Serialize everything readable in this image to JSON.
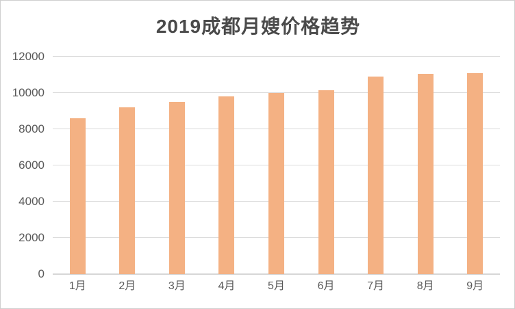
{
  "chart_data": {
    "type": "bar",
    "title": "2019成都月嫂价格趋势",
    "categories": [
      "1月",
      "2月",
      "3月",
      "4月",
      "5月",
      "6月",
      "7月",
      "8月",
      "9月"
    ],
    "values": [
      8600,
      9200,
      9500,
      9800,
      10000,
      10150,
      10900,
      11050,
      11100
    ],
    "xlabel": "",
    "ylabel": "",
    "ylim": [
      0,
      12000
    ],
    "ytick_step": 2000,
    "ytick_labels": [
      "0",
      "2000",
      "4000",
      "6000",
      "8000",
      "10000",
      "12000"
    ],
    "grid": "horizontal",
    "legend": "none",
    "colors": {
      "bar": "#f4b183",
      "gridline": "#dbdbdb",
      "axis_line": "#d6d6d6",
      "tick_label": "#595959",
      "title": "#4a4a4a",
      "background": "#ffffff",
      "frame_border": "#cfcfcf"
    }
  }
}
